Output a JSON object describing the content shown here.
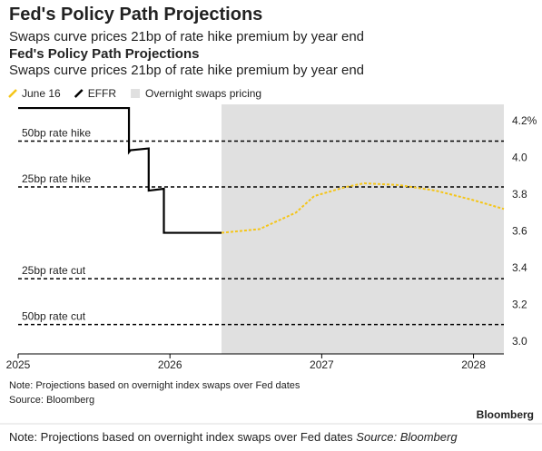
{
  "header": {
    "title": "Fed's Policy Path Projections",
    "subtitle": "Swaps curve prices 21bp of rate hike premium by year end",
    "title_repeat": "Fed's Policy Path Projections",
    "subtitle_repeat": "Swaps curve prices 21bp of rate hike premium by year end"
  },
  "chart_data": {
    "type": "line",
    "xlim": [
      2025,
      2028.2
    ],
    "xticks": [
      2025,
      2026,
      2027,
      2028
    ],
    "ylim": [
      2.93,
      4.29
    ],
    "yticks": [
      {
        "value": 4.2,
        "label": "4.2%"
      },
      {
        "value": 4.0,
        "label": "4.0"
      },
      3.8,
      3.6,
      3.4,
      3.2,
      {
        "value": 3.0,
        "label": "3.0"
      }
    ],
    "shaded": {
      "name": "Overnight swaps pricing",
      "x": [
        2026.34,
        2028.2
      ],
      "color": "#e0e0e0"
    },
    "hlines": [
      {
        "label": "50bp rate hike",
        "value": 4.09
      },
      {
        "label": "25bp rate hike",
        "value": 3.84
      },
      {
        "label": "25bp rate cut",
        "value": 3.34
      },
      {
        "label": "50bp rate cut",
        "value": 3.09
      }
    ],
    "series": [
      {
        "name": "June 16",
        "color": "#f5c518",
        "dashed": true,
        "x": [
          2026.34,
          2026.59,
          2026.83,
          2026.95,
          2027.16,
          2027.28,
          2027.51,
          2027.75,
          2027.99,
          2028.2
        ],
        "values": [
          3.59,
          3.61,
          3.7,
          3.79,
          3.84,
          3.86,
          3.85,
          3.82,
          3.77,
          3.72
        ]
      },
      {
        "name": "EFFR",
        "color": "#000000",
        "dashed": false,
        "x": [
          2025,
          2025.73,
          2025.73,
          2025.74,
          2025.86,
          2025.86,
          2025.96,
          2025.96,
          2026.34
        ],
        "values": [
          4.27,
          4.27,
          4.03,
          4.04,
          4.05,
          3.82,
          3.83,
          3.59,
          3.59
        ]
      }
    ]
  },
  "footer": {
    "note": "Note: Projections based on overnight index swaps over Fed dates",
    "source": "Source: Bloomberg",
    "brand": "Bloomberg",
    "caption_note": "Note: Projections based on overnight index swaps over Fed dates",
    "caption_source": "Source: Bloomberg"
  }
}
